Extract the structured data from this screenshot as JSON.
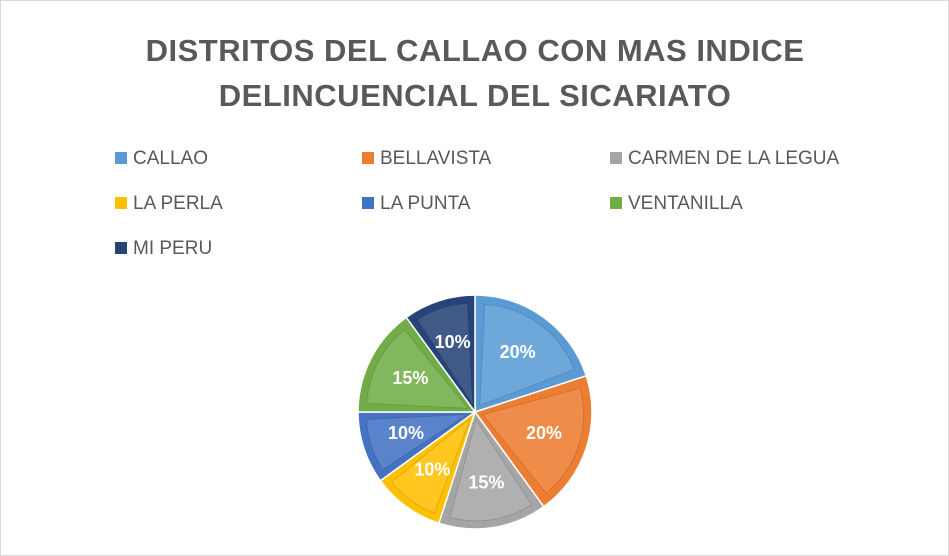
{
  "chart_data": {
    "type": "pie",
    "title": "DISTRITOS DEL CALLAO CON MAS INDICE DELINCUENCIAL DEL SICARIATO",
    "categories": [
      "CALLAO",
      "BELLAVISTA",
      "CARMEN DE LA LEGUA",
      "LA PERLA",
      "LA PUNTA",
      "VENTANILLA",
      "MI PERU"
    ],
    "values": [
      20,
      20,
      15,
      10,
      10,
      15,
      10
    ],
    "value_labels": [
      "20%",
      "20%",
      "15%",
      "10%",
      "10%",
      "15%",
      "10%"
    ],
    "colors": [
      "#5b9bd5",
      "#ed7d31",
      "#a5a5a5",
      "#ffc000",
      "#4472c4",
      "#70ad47",
      "#264478"
    ],
    "legend": "top"
  }
}
